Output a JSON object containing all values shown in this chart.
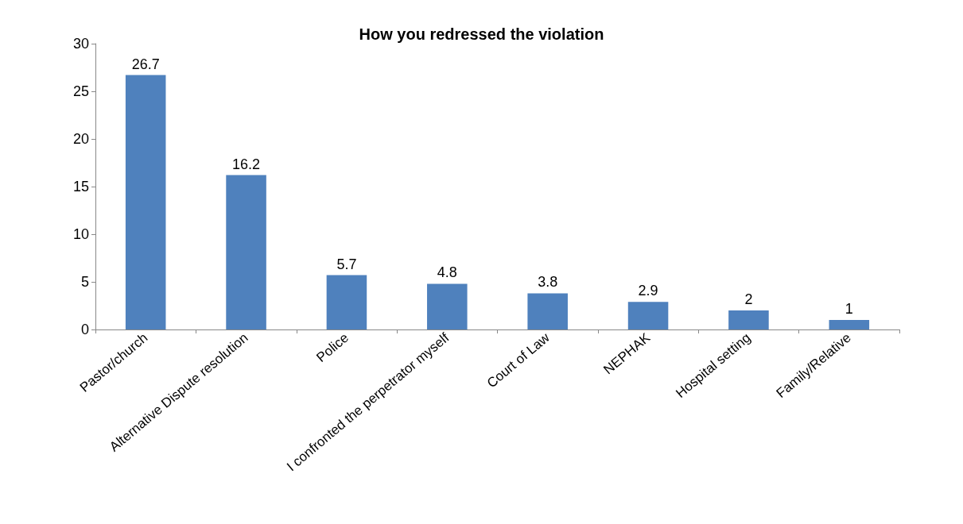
{
  "chart_data": {
    "type": "bar",
    "title": "How you redressed the violation",
    "categories": [
      "Pastor/church",
      "Alternative Dispute resolution",
      "Police",
      "I confronted the perpetrator myself",
      "Court of Law",
      "NEPHAK",
      "Hospital setting",
      "Family/Relative"
    ],
    "values": [
      26.7,
      16.2,
      5.7,
      4.8,
      3.8,
      2.9,
      2,
      1
    ],
    "color": "#4f81bd",
    "ylim": [
      0,
      30
    ],
    "yticks": [
      0,
      5,
      10,
      15,
      20,
      25,
      30
    ],
    "data_labels": true,
    "grid": false
  }
}
